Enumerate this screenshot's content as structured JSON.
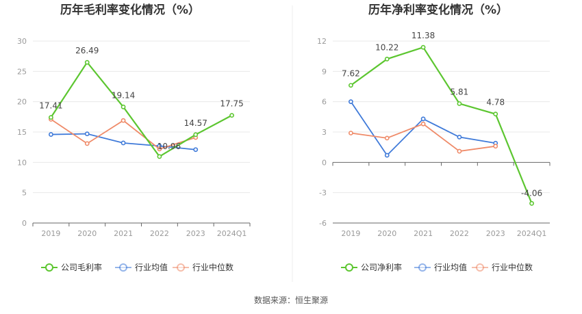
{
  "source": "数据来源：恒生聚源",
  "chart_data": [
    {
      "type": "line",
      "title": "历年毛利率变化情况（%）",
      "categories": [
        "2019",
        "2020",
        "2021",
        "2022",
        "2023",
        "2024Q1"
      ],
      "ylim": [
        0,
        30
      ],
      "yticks": [
        "0",
        "5",
        "10",
        "15",
        "20",
        "25",
        "30"
      ],
      "ytick_values": [
        0,
        5,
        10,
        15,
        20,
        25,
        30
      ],
      "grid": true,
      "legend": "bottom",
      "series": [
        {
          "name": "公司毛利率",
          "color": "#5cc630",
          "values": [
            17.41,
            26.49,
            19.14,
            10.96,
            14.57,
            17.75
          ],
          "labels": [
            "17.41",
            "26.49",
            "19.14",
            "10.96",
            "14.57",
            "17.75"
          ]
        },
        {
          "name": "行业均值",
          "color": "#3f7ad9",
          "values": [
            14.6,
            14.7,
            13.2,
            12.7,
            12.1,
            null
          ]
        },
        {
          "name": "行业中位数",
          "color": "#ef8a68",
          "values": [
            17.1,
            13.1,
            16.9,
            12.2,
            14.1,
            null
          ]
        }
      ]
    },
    {
      "type": "line",
      "title": "历年净利率变化情况（%）",
      "categories": [
        "2019",
        "2020",
        "2021",
        "2022",
        "2023",
        "2024Q1"
      ],
      "ylim": [
        -6,
        12
      ],
      "yticks": [
        "-6",
        "-3",
        "0",
        "3",
        "6",
        "9",
        "12"
      ],
      "ytick_values": [
        -6,
        -3,
        0,
        3,
        6,
        9,
        12
      ],
      "grid": true,
      "legend": "bottom",
      "series": [
        {
          "name": "公司净利率",
          "color": "#5cc630",
          "values": [
            7.62,
            10.22,
            11.38,
            5.81,
            4.78,
            -4.06
          ],
          "labels": [
            "7.62",
            "10.22",
            "11.38",
            "5.81",
            "4.78",
            "-4.06"
          ]
        },
        {
          "name": "行业均值",
          "color": "#3f7ad9",
          "values": [
            6.0,
            0.7,
            4.3,
            2.5,
            1.9,
            null
          ]
        },
        {
          "name": "行业中位数",
          "color": "#ef8a68",
          "values": [
            2.9,
            2.4,
            3.8,
            1.1,
            1.6,
            null
          ]
        }
      ]
    }
  ]
}
